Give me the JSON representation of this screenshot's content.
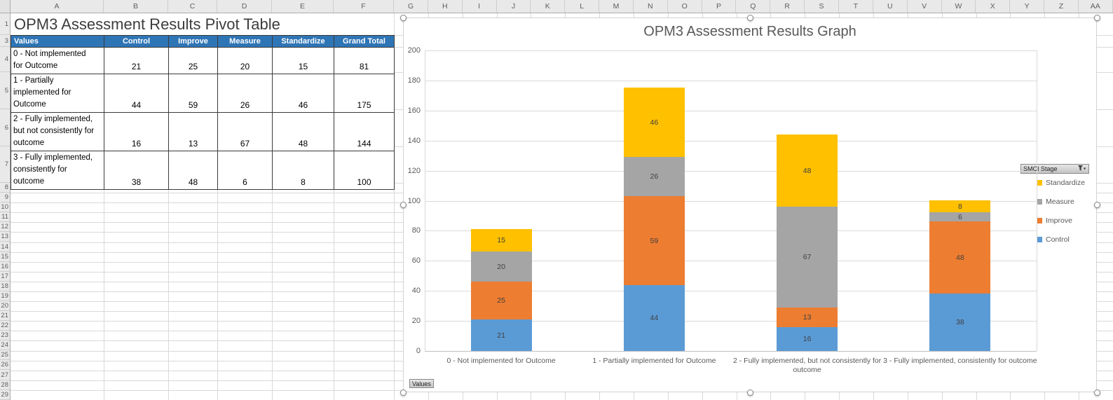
{
  "sheet": {
    "columns": [
      "A",
      "B",
      "C",
      "D",
      "E",
      "F",
      "G",
      "H",
      "I",
      "J",
      "K",
      "L",
      "M",
      "N",
      "O",
      "P",
      "Q",
      "R",
      "S",
      "T",
      "U",
      "V",
      "W",
      "X",
      "Y",
      "Z",
      "AA"
    ],
    "rows": [
      "1",
      "3",
      "4",
      "5",
      "6",
      "7",
      "8",
      "9",
      "10",
      "11",
      "12",
      "13",
      "14",
      "15",
      "16",
      "17",
      "18",
      "19",
      "20",
      "21",
      "22",
      "23",
      "24",
      "25",
      "26",
      "27",
      "28",
      "29"
    ]
  },
  "pivot_table": {
    "title": "OPM3 Assessment Results Pivot Table",
    "headers": [
      "Values",
      "Control",
      "Improve",
      "Measure",
      "Standardize",
      "Grand Total"
    ],
    "rows": [
      {
        "label": "0 - Not implemented for Outcome",
        "values": [
          "21",
          "25",
          "20",
          "15",
          "81"
        ]
      },
      {
        "label": "1 - Partially implemented for Outcome",
        "values": [
          "44",
          "59",
          "26",
          "46",
          "175"
        ]
      },
      {
        "label": "2 - Fully implemented, but not consistently for outcome",
        "values": [
          "16",
          "13",
          "67",
          "48",
          "144"
        ]
      },
      {
        "label": "3 - Fully implemented, consistently for outcome",
        "values": [
          "38",
          "48",
          "6",
          "8",
          "100"
        ]
      }
    ]
  },
  "chart": {
    "title": "OPM3 Assessment Results Graph",
    "field_button": "SMCI Stage",
    "values_button": "Values"
  },
  "chart_data": {
    "type": "bar",
    "stacked": true,
    "title": "OPM3 Assessment Results Graph",
    "categories": [
      "0 - Not implemented for Outcome",
      "1 - Partially implemented for Outcome",
      "2 - Fully implemented, but not consistently for outcome",
      "3 - Fully implemented, consistently for outcome"
    ],
    "series": [
      {
        "name": "Control",
        "color": "#5B9BD5",
        "values": [
          21,
          44,
          16,
          38
        ]
      },
      {
        "name": "Improve",
        "color": "#ED7D31",
        "values": [
          25,
          59,
          13,
          48
        ]
      },
      {
        "name": "Measure",
        "color": "#A5A5A5",
        "values": [
          20,
          26,
          67,
          6
        ]
      },
      {
        "name": "Standardize",
        "color": "#FFC000",
        "values": [
          15,
          46,
          48,
          8
        ]
      }
    ],
    "ylim": [
      0,
      200
    ],
    "ytick_step": 20,
    "grid": true,
    "legend_position": "right",
    "data_labels": true
  }
}
